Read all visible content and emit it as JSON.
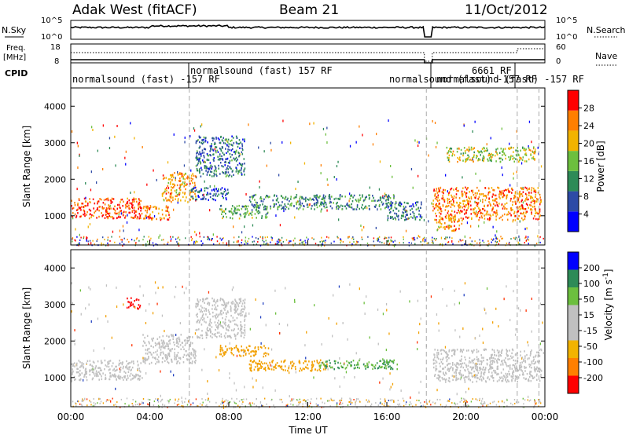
{
  "header": {
    "station": "Adak West (fitACF)",
    "beam": "Beam 21",
    "date": "11/Oct/2012"
  },
  "top_panels": {
    "nsky_label": "N.Sky",
    "nsearch_label": "N.Search",
    "nsky_ticks": [
      "10^5",
      "10^0"
    ],
    "nsearch_ticks": [
      "10^5",
      "10^0"
    ],
    "freq_label": "Freq.",
    "freq_unit": "[MHz]",
    "freq_ticks": [
      "18",
      "8"
    ],
    "nave_label": "Nave",
    "nave_ticks": [
      "60",
      "0"
    ],
    "cpid_label": "CPID",
    "cpid_segments": [
      "normalsound (fast) -157 RF",
      "normalsound (fast) 157 RF",
      "normalsound (fast) -157 RF",
      "6661 RF",
      "normalsound (fast) -157 RF"
    ]
  },
  "chart_data": [
    {
      "type": "heatmap",
      "name": "power",
      "ylabel": "Slant Range [km]",
      "xlabel": "",
      "ylim": [
        200,
        4500
      ],
      "yticks": [
        1000,
        2000,
        3000,
        4000
      ],
      "xlim": [
        0,
        24
      ],
      "colorbar": {
        "label": "Power [dB]",
        "ticks": [
          "28",
          "24",
          "20",
          "16",
          "12",
          "8",
          "4"
        ],
        "colors": [
          "#0000ff",
          "#2d4aa6",
          "#2e8b57",
          "#6cbf3e",
          "#f2b300",
          "#ff7f00",
          "#ff0000"
        ]
      },
      "echo_regions": [
        {
          "t": [
            0.0,
            3.6
          ],
          "r": [
            950,
            1500
          ],
          "level": 26
        },
        {
          "t": [
            3.6,
            5.0
          ],
          "r": [
            900,
            1300
          ],
          "level": 24
        },
        {
          "t": [
            4.6,
            6.3
          ],
          "r": [
            1400,
            2200
          ],
          "level": 22
        },
        {
          "t": [
            6.3,
            8.8
          ],
          "r": [
            2100,
            3200
          ],
          "level": 10
        },
        {
          "t": [
            6.0,
            8.0
          ],
          "r": [
            1450,
            1800
          ],
          "level": 8
        },
        {
          "t": [
            7.5,
            10.0
          ],
          "r": [
            950,
            1300
          ],
          "level": 14
        },
        {
          "t": [
            9.0,
            16.5
          ],
          "r": [
            1200,
            1600
          ],
          "level": 12
        },
        {
          "t": [
            16.0,
            17.8
          ],
          "r": [
            900,
            1400
          ],
          "level": 10
        },
        {
          "t": [
            18.5,
            19.8
          ],
          "r": [
            600,
            1000
          ],
          "level": 22
        },
        {
          "t": [
            18.3,
            23.8
          ],
          "r": [
            900,
            1800
          ],
          "level": 24
        },
        {
          "t": [
            19.0,
            23.5
          ],
          "r": [
            2500,
            2900
          ],
          "level": 18
        }
      ]
    },
    {
      "type": "heatmap",
      "name": "velocity",
      "ylabel": "Slant Range [km]",
      "xlabel": "Time UT",
      "ylim": [
        200,
        4500
      ],
      "yticks": [
        1000,
        2000,
        3000,
        4000
      ],
      "xlim": [
        0,
        24
      ],
      "xticks": [
        "00:00",
        "04:00",
        "08:00",
        "12:00",
        "16:00",
        "20:00",
        "00:00"
      ],
      "colorbar": {
        "label": "Velocity [m s^-1]",
        "ticks": [
          "200",
          "100",
          "50",
          "15",
          "-15",
          "-50",
          "-100",
          "-200"
        ],
        "colors": [
          "#ff0000",
          "#ff7f00",
          "#f2b300",
          "#c0c0c0",
          "#c0c0c0",
          "#6cbf3e",
          "#2e8b57",
          "#0000ff"
        ]
      },
      "echo_regions": [
        {
          "t": [
            0.0,
            3.6
          ],
          "r": [
            950,
            1500
          ],
          "velocity": 0
        },
        {
          "t": [
            3.6,
            6.3
          ],
          "r": [
            1400,
            2200
          ],
          "velocity": 0
        },
        {
          "t": [
            6.3,
            8.8
          ],
          "r": [
            2100,
            3200
          ],
          "velocity": 0
        },
        {
          "t": [
            7.5,
            10.0
          ],
          "r": [
            1600,
            1900
          ],
          "velocity": -60
        },
        {
          "t": [
            9.0,
            13.0
          ],
          "r": [
            1200,
            1500
          ],
          "velocity": -60
        },
        {
          "t": [
            12.5,
            16.5
          ],
          "r": [
            1250,
            1500
          ],
          "velocity": 60
        },
        {
          "t": [
            2.8,
            3.5
          ],
          "r": [
            2900,
            3200
          ],
          "velocity": -180
        },
        {
          "t": [
            18.3,
            23.8
          ],
          "r": [
            900,
            1800
          ],
          "velocity": 0
        }
      ]
    }
  ]
}
